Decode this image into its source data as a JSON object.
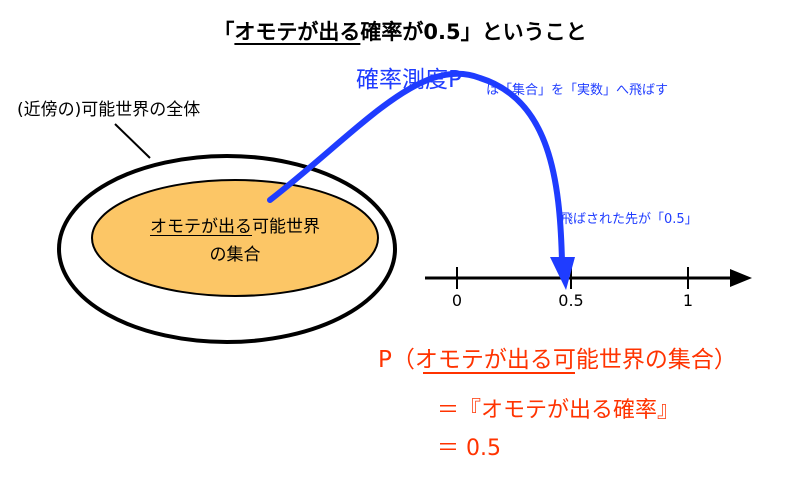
{
  "title": {
    "prefix": "「",
    "underlined": "オモテが出る",
    "rest": "確率が0.5」ということ"
  },
  "whole_set_label": "(近傍の)可能世界の全体",
  "inner_set": {
    "line1_underlined": "オモテが出る",
    "line1_rest": "可能世界",
    "line2": "の集合"
  },
  "measure": {
    "title": "確率測度P",
    "description": "は「集合」を「実数」へ飛ばす",
    "landed_label": "飛ばされた先が「0.5」"
  },
  "number_line": {
    "ticks": [
      "0",
      "0.5",
      "1"
    ]
  },
  "formula": {
    "line1_prefix": "P（",
    "line1_underlined": "オモテが出る",
    "line1_rest": "可能世界の集合）",
    "line2": "＝『オモテが出る確率』",
    "line3": "＝ 0.5"
  },
  "colors": {
    "blue_accent": "#1f3cff",
    "red_accent": "#ff3300",
    "inner_fill": "#fcc666",
    "black": "#000000"
  }
}
